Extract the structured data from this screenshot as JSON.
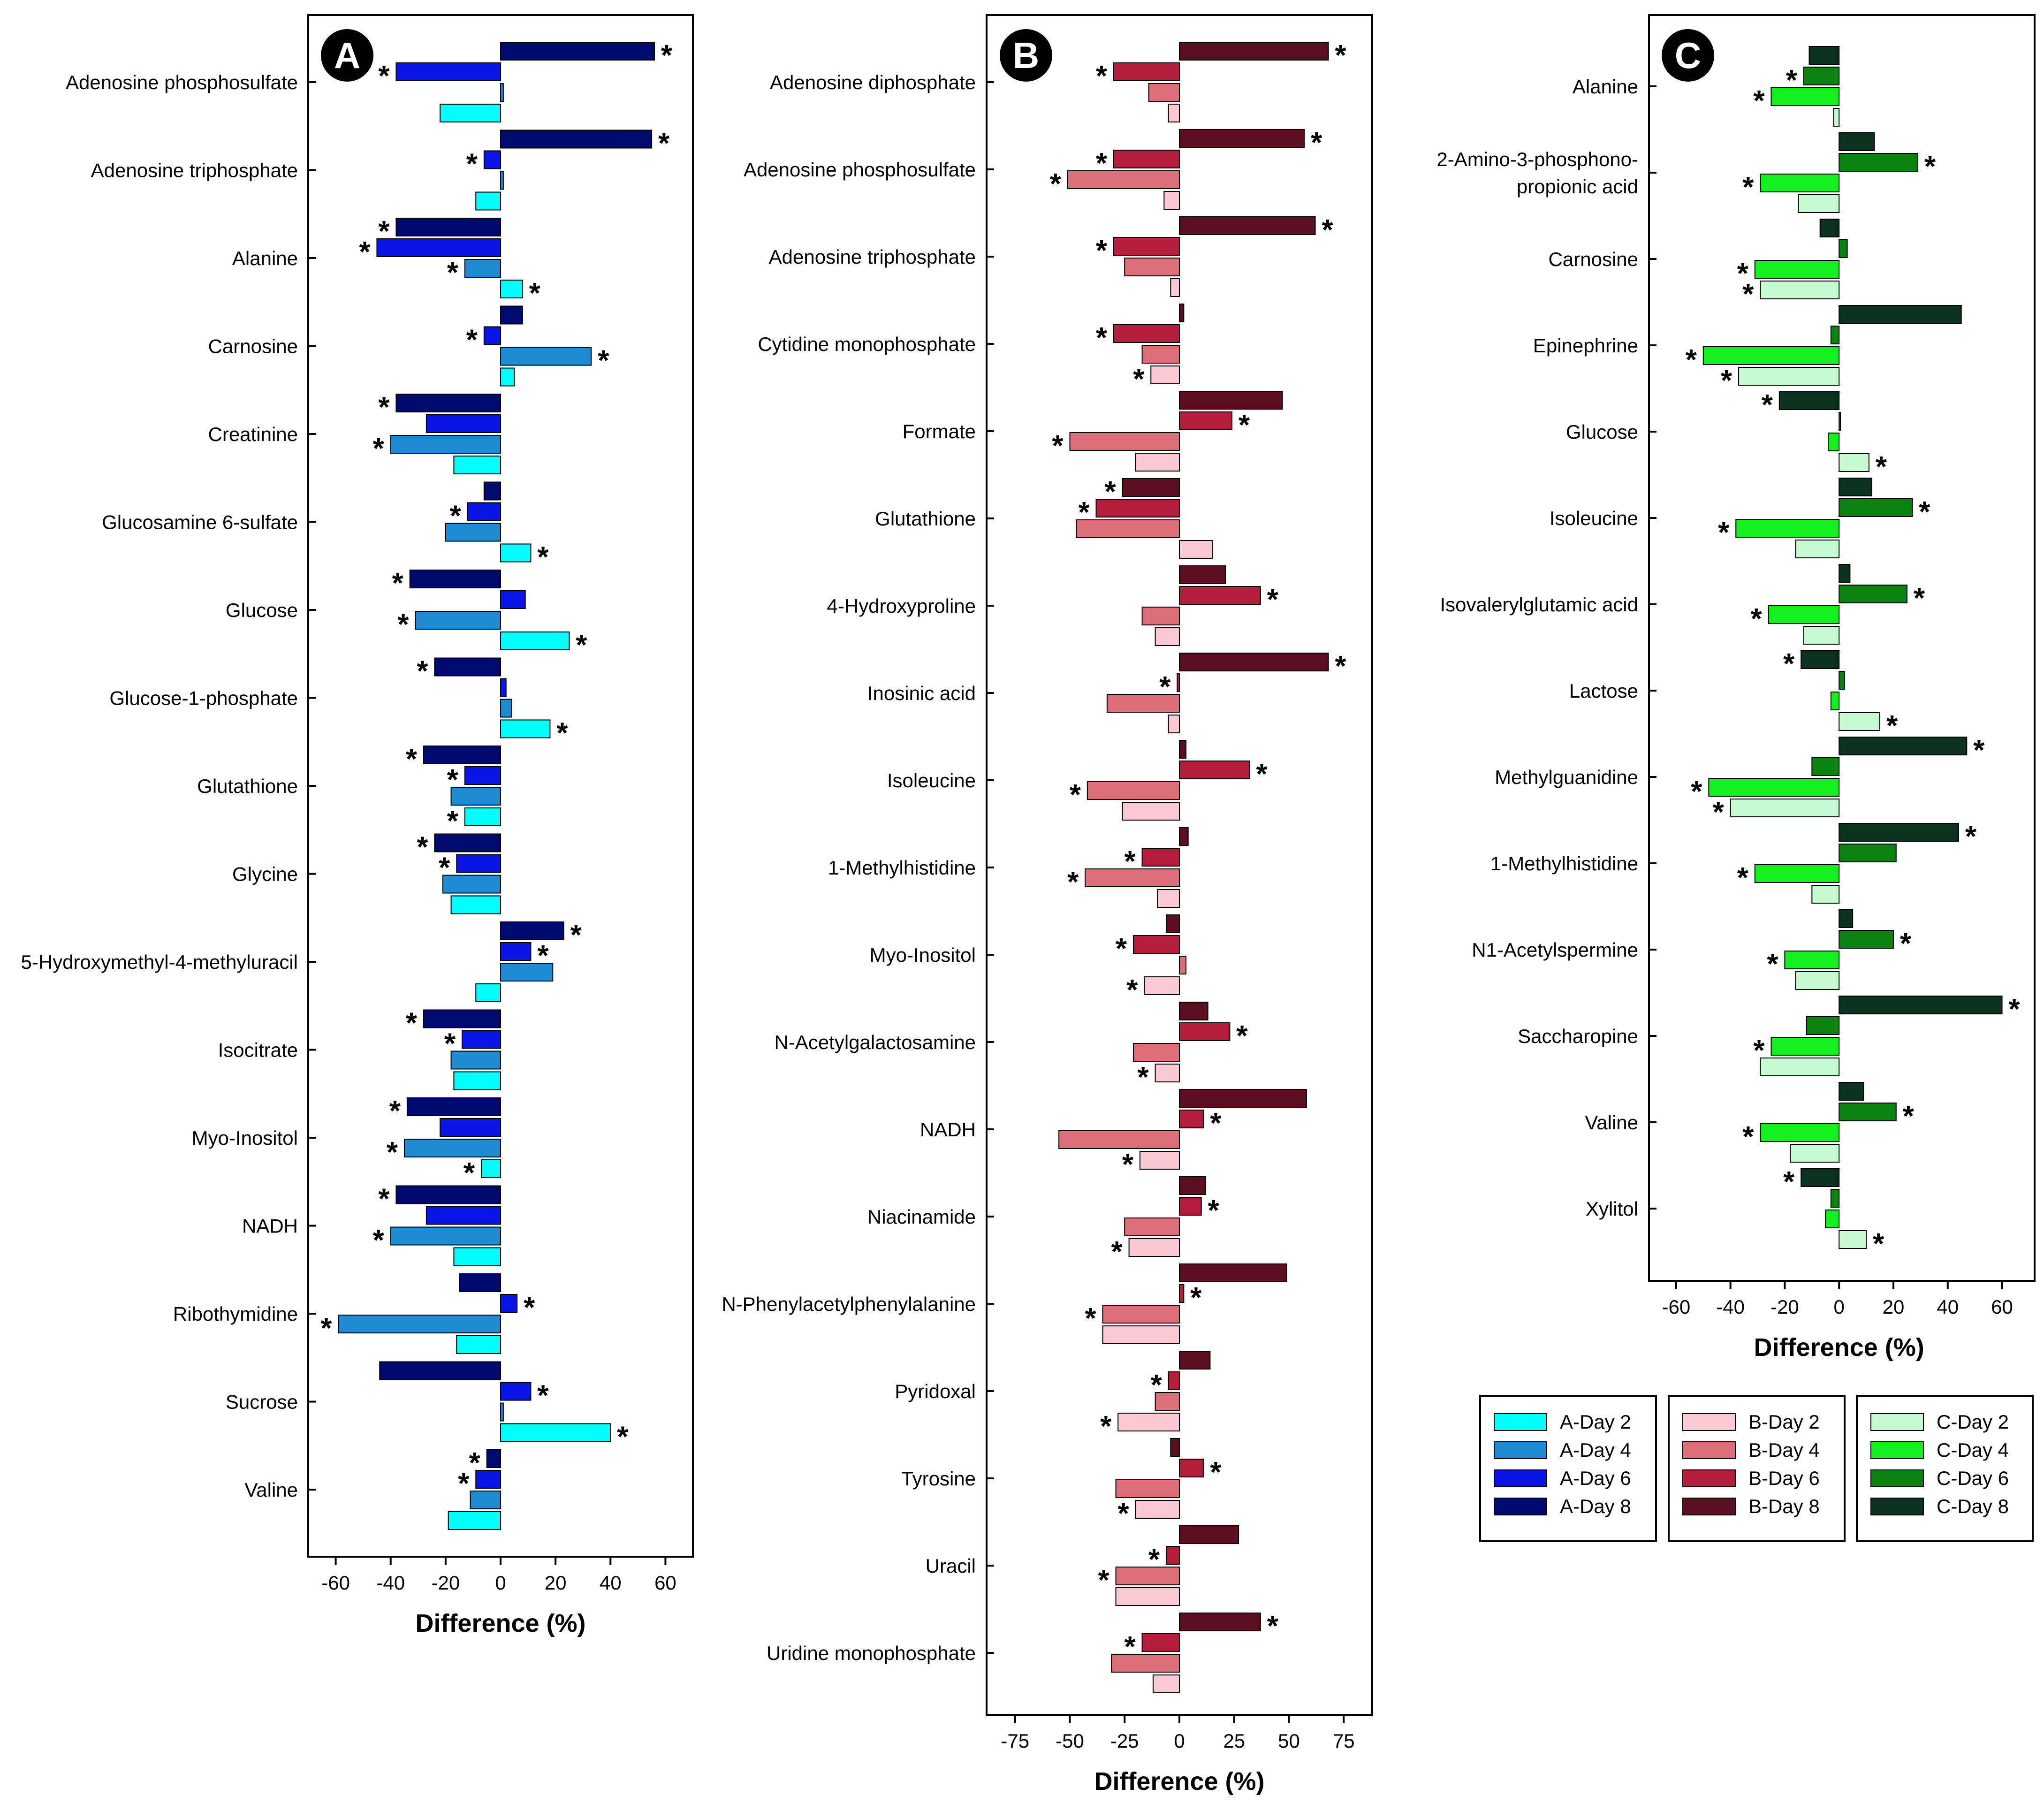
{
  "chart_data": [
    {
      "type": "bar",
      "orientation": "horizontal",
      "panel_label": "A",
      "xlabel": "Difference (%)",
      "xlim": [
        -70,
        70
      ],
      "xticks": [
        -60,
        -40,
        -20,
        0,
        20,
        40,
        60
      ],
      "categories": [
        "Adenosine phosphosulfate",
        "Adenosine triphosphate",
        "Alanine",
        "Carnosine",
        "Creatinine",
        "Glucosamine 6-sulfate",
        "Glucose",
        "Glucose-1-phosphate",
        "Glutathione",
        "Glycine",
        "5-Hydroxymethyl-4-methyluracil",
        "Isocitrate",
        "Myo-Inositol",
        "NADH",
        "Ribothymidine",
        "Sucrose",
        "Valine"
      ],
      "series": [
        {
          "name": "A-Day 8",
          "color": "#000a6e",
          "values": [
            56,
            55,
            -38,
            8,
            -38,
            -6,
            -33,
            -24,
            -28,
            -24,
            23,
            -28,
            -34,
            -38,
            -15,
            -44,
            -5
          ],
          "significant": [
            true,
            true,
            true,
            false,
            true,
            false,
            true,
            true,
            true,
            true,
            true,
            true,
            true,
            true,
            false,
            false,
            true
          ]
        },
        {
          "name": "A-Day 6",
          "color": "#0a14e6",
          "values": [
            -38,
            -6,
            -45,
            -6,
            -27,
            -12,
            9,
            2,
            -13,
            -16,
            11,
            -14,
            -22,
            -27,
            6,
            11,
            -9
          ],
          "significant": [
            true,
            true,
            true,
            true,
            false,
            true,
            false,
            false,
            true,
            true,
            true,
            true,
            false,
            false,
            true,
            true,
            true
          ]
        },
        {
          "name": "A-Day 4",
          "color": "#1e8ad2",
          "values": [
            1,
            1,
            -13,
            33,
            -40,
            -20,
            -31,
            4,
            -18,
            -21,
            19,
            -18,
            -35,
            -40,
            -59,
            1,
            -11
          ],
          "significant": [
            false,
            false,
            true,
            true,
            true,
            false,
            true,
            false,
            false,
            false,
            false,
            false,
            true,
            true,
            true,
            false,
            false
          ]
        },
        {
          "name": "A-Day 2",
          "color": "#00ffff",
          "values": [
            -22,
            -9,
            8,
            5,
            -17,
            11,
            25,
            18,
            -13,
            -18,
            -9,
            -17,
            -7,
            -17,
            -16,
            40,
            -19
          ],
          "significant": [
            false,
            false,
            true,
            false,
            false,
            true,
            true,
            true,
            true,
            false,
            false,
            false,
            true,
            false,
            false,
            true,
            false
          ]
        }
      ]
    },
    {
      "type": "bar",
      "orientation": "horizontal",
      "panel_label": "B",
      "xlabel": "Difference (%)",
      "xlim": [
        -88,
        88
      ],
      "xticks": [
        -75,
        -50,
        -25,
        0,
        25,
        50,
        75
      ],
      "categories": [
        "Adenosine diphosphate",
        "Adenosine phosphosulfate",
        "Adenosine triphosphate",
        "Cytidine monophosphate",
        "Formate",
        "Glutathione",
        "4-Hydroxyproline",
        "Inosinic acid",
        "Isoleucine",
        "1-Methylhistidine",
        "Myo-Inositol",
        "N-Acetylgalactosamine",
        "NADH",
        "Niacinamide",
        "N-Phenylacetylphenylalanine",
        "Pyridoxal",
        "Tyrosine",
        "Uracil",
        "Uridine monophosphate"
      ],
      "series": [
        {
          "name": "B-Day 8",
          "color": "#5c0f1e",
          "values": [
            68,
            57,
            62,
            2,
            47,
            -26,
            21,
            68,
            3,
            4,
            -6,
            13,
            58,
            12,
            49,
            14,
            -4,
            27,
            37
          ],
          "significant": [
            true,
            true,
            true,
            false,
            false,
            true,
            false,
            true,
            false,
            false,
            false,
            false,
            false,
            false,
            false,
            false,
            false,
            false,
            true
          ]
        },
        {
          "name": "B-Day 6",
          "color": "#b41e3c",
          "values": [
            -30,
            -30,
            -30,
            -30,
            24,
            -38,
            37,
            -1,
            32,
            -17,
            -21,
            23,
            11,
            10,
            2,
            -5,
            11,
            -6,
            -17
          ],
          "significant": [
            true,
            true,
            true,
            true,
            true,
            true,
            true,
            true,
            true,
            true,
            true,
            true,
            true,
            true,
            true,
            true,
            true,
            true,
            true
          ]
        },
        {
          "name": "B-Day 4",
          "color": "#dc6e78",
          "values": [
            -14,
            -51,
            -25,
            -17,
            -50,
            -47,
            -17,
            -33,
            -42,
            -43,
            3,
            -21,
            -55,
            -25,
            -35,
            -11,
            -29,
            -29,
            -31
          ],
          "significant": [
            false,
            true,
            false,
            false,
            true,
            false,
            false,
            false,
            true,
            true,
            false,
            false,
            false,
            false,
            true,
            false,
            false,
            true,
            false
          ]
        },
        {
          "name": "B-Day 2",
          "color": "#fac8d2",
          "values": [
            -5,
            -7,
            -4,
            -13,
            -20,
            15,
            -11,
            -5,
            -26,
            -10,
            -16,
            -11,
            -18,
            -23,
            -35,
            -28,
            -20,
            -29,
            -12
          ],
          "significant": [
            false,
            false,
            false,
            true,
            false,
            false,
            false,
            false,
            false,
            false,
            true,
            true,
            true,
            true,
            false,
            true,
            true,
            false,
            false
          ]
        }
      ]
    },
    {
      "type": "bar",
      "orientation": "horizontal",
      "panel_label": "C",
      "xlabel": "Difference (%)",
      "xlim": [
        -70,
        72
      ],
      "xticks": [
        -60,
        -40,
        -20,
        0,
        20,
        40,
        60
      ],
      "categories": [
        "Alanine",
        "2-Amino-3-phosphono-propionic acid",
        "Carnosine",
        "Epinephrine",
        "Glucose",
        "Isoleucine",
        "Isovalerylglutamic acid",
        "Lactose",
        "Methylguanidine",
        "1-Methylhistidine",
        "N1-Acetylspermine",
        "Saccharopine",
        "Valine",
        "Xylitol"
      ],
      "category_lines": [
        [
          "Alanine"
        ],
        [
          "2-Amino-3-phosphono-",
          "propionic acid"
        ],
        [
          "Carnosine"
        ],
        [
          "Epinephrine"
        ],
        [
          "Glucose"
        ],
        [
          "Isoleucine"
        ],
        [
          "Isovalerylglutamic acid"
        ],
        [
          "Lactose"
        ],
        [
          "Methylguanidine"
        ],
        [
          "1-Methylhistidine"
        ],
        [
          "N1-Acetylspermine"
        ],
        [
          "Saccharopine"
        ],
        [
          "Valine"
        ],
        [
          "Xylitol"
        ]
      ],
      "series": [
        {
          "name": "C-Day 8",
          "color": "#0a321e",
          "values": [
            -11,
            13,
            -7,
            45,
            -22,
            12,
            4,
            -14,
            47,
            44,
            5,
            60,
            9,
            -14
          ],
          "significant": [
            false,
            false,
            false,
            false,
            true,
            false,
            false,
            true,
            true,
            true,
            false,
            true,
            false,
            true
          ]
        },
        {
          "name": "C-Day 6",
          "color": "#0a820f",
          "values": [
            -13,
            29,
            3,
            -3,
            0,
            27,
            25,
            2,
            -10,
            21,
            20,
            -12,
            21,
            -3
          ],
          "significant": [
            true,
            true,
            false,
            false,
            false,
            true,
            true,
            false,
            false,
            false,
            true,
            false,
            true,
            false
          ]
        },
        {
          "name": "C-Day 4",
          "color": "#14f01e",
          "values": [
            -25,
            -29,
            -31,
            -50,
            -4,
            -38,
            -26,
            -3,
            -48,
            -31,
            -20,
            -25,
            -29,
            -5
          ],
          "significant": [
            true,
            true,
            true,
            true,
            false,
            true,
            true,
            false,
            true,
            true,
            true,
            true,
            true,
            false
          ]
        },
        {
          "name": "C-Day 2",
          "color": "#c8fad2",
          "values": [
            -2,
            -15,
            -29,
            -37,
            11,
            -16,
            -13,
            15,
            -40,
            -10,
            -16,
            -29,
            -18,
            10
          ],
          "significant": [
            false,
            false,
            true,
            true,
            true,
            false,
            false,
            true,
            true,
            false,
            false,
            false,
            false,
            true
          ]
        }
      ]
    }
  ],
  "legends": [
    [
      "A-Day 2",
      "A-Day 4",
      "A-Day 6",
      "A-Day 8"
    ],
    [
      "B-Day 2",
      "B-Day 4",
      "B-Day 6",
      "B-Day 8"
    ],
    [
      "C-Day 2",
      "C-Day 4",
      "C-Day 6",
      "C-Day 8"
    ]
  ],
  "significance_marker": "*"
}
